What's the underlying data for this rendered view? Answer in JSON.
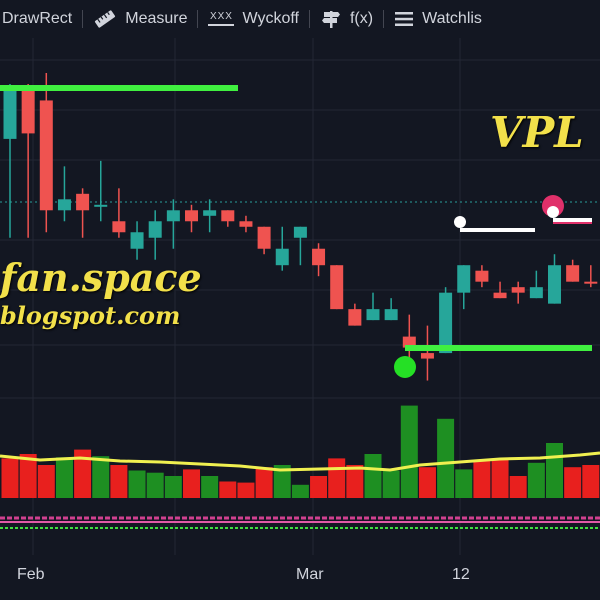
{
  "toolbar": {
    "items": [
      {
        "label": "DrawRect",
        "icon": "rectangle-icon"
      },
      {
        "label": "Measure",
        "icon": "ruler-icon"
      },
      {
        "label": "Wyckoff",
        "icon": "wyckoff-icon",
        "icon_text": "XXX"
      },
      {
        "label": "f(x)",
        "icon": "signpost-icon"
      },
      {
        "label": "Watchlis",
        "icon": "hamburger-menu-icon"
      }
    ]
  },
  "ticker": "VPL",
  "watermark": {
    "line1": "fan.space",
    "line2": "blogspot.com"
  },
  "x_axis": {
    "labels": [
      "Feb",
      "Mar",
      "12"
    ]
  },
  "colors": {
    "background": "#131722",
    "up": "#26a69a",
    "down": "#ef5350",
    "volume_up": "#1e8f22",
    "volume_down": "#e8201e",
    "support_line": "#40f040",
    "volume_ma": "#f0f050",
    "ticker_text": "#f2e04a",
    "marker_pink": "#e0306a"
  },
  "chart_data": {
    "type": "candlestick",
    "candles": [
      {
        "o": 70,
        "h": 71,
        "l": 43,
        "c": 61,
        "dir": "up"
      },
      {
        "o": 70,
        "h": 71,
        "l": 43,
        "c": 62,
        "dir": "down"
      },
      {
        "o": 68,
        "h": 73,
        "l": 44,
        "c": 48,
        "dir": "down"
      },
      {
        "o": 50,
        "h": 56,
        "l": 46,
        "c": 48,
        "dir": "up"
      },
      {
        "o": 51,
        "h": 52,
        "l": 43,
        "c": 48,
        "dir": "down"
      },
      {
        "o": 49,
        "h": 57,
        "l": 46,
        "c": 49,
        "dir": "up"
      },
      {
        "o": 46,
        "h": 52,
        "l": 43,
        "c": 44,
        "dir": "down"
      },
      {
        "o": 41,
        "h": 46,
        "l": 39,
        "c": 44,
        "dir": "up"
      },
      {
        "o": 43,
        "h": 48,
        "l": 39,
        "c": 46,
        "dir": "up"
      },
      {
        "o": 46,
        "h": 50,
        "l": 41,
        "c": 48,
        "dir": "up"
      },
      {
        "o": 48,
        "h": 49,
        "l": 44,
        "c": 46,
        "dir": "down"
      },
      {
        "o": 48,
        "h": 50,
        "l": 44,
        "c": 47,
        "dir": "up"
      },
      {
        "o": 48,
        "h": 48,
        "l": 45,
        "c": 46,
        "dir": "down"
      },
      {
        "o": 46,
        "h": 47,
        "l": 44,
        "c": 45,
        "dir": "down"
      },
      {
        "o": 45,
        "h": 45,
        "l": 40,
        "c": 41,
        "dir": "down"
      },
      {
        "o": 38,
        "h": 45,
        "l": 37,
        "c": 41,
        "dir": "up"
      },
      {
        "o": 43,
        "h": 45,
        "l": 38,
        "c": 45,
        "dir": "up"
      },
      {
        "o": 41,
        "h": 42,
        "l": 36,
        "c": 38,
        "dir": "down"
      },
      {
        "o": 38,
        "h": 38,
        "l": 30,
        "c": 30,
        "dir": "down"
      },
      {
        "o": 30,
        "h": 31,
        "l": 27,
        "c": 27,
        "dir": "down"
      },
      {
        "o": 28,
        "h": 33,
        "l": 28,
        "c": 30,
        "dir": "up"
      },
      {
        "o": 28,
        "h": 32,
        "l": 28,
        "c": 30,
        "dir": "up"
      },
      {
        "o": 25,
        "h": 29,
        "l": 21,
        "c": 23,
        "dir": "down"
      },
      {
        "o": 22,
        "h": 27,
        "l": 17,
        "c": 21,
        "dir": "down"
      },
      {
        "o": 22,
        "h": 34,
        "l": 22,
        "c": 33,
        "dir": "up"
      },
      {
        "o": 33,
        "h": 38,
        "l": 30,
        "c": 38,
        "dir": "up"
      },
      {
        "o": 37,
        "h": 38,
        "l": 34,
        "c": 35,
        "dir": "down"
      },
      {
        "o": 33,
        "h": 35,
        "l": 32,
        "c": 32,
        "dir": "down"
      },
      {
        "o": 33,
        "h": 35,
        "l": 31,
        "c": 34,
        "dir": "down"
      },
      {
        "o": 32,
        "h": 37,
        "l": 32,
        "c": 34,
        "dir": "up"
      },
      {
        "o": 31,
        "h": 40,
        "l": 31,
        "c": 38,
        "dir": "up"
      },
      {
        "o": 38,
        "h": 39,
        "l": 35,
        "c": 35,
        "dir": "down"
      },
      {
        "o": 35,
        "h": 38,
        "l": 34,
        "c": 35,
        "dir": "down"
      }
    ],
    "volume": [
      {
        "v": 36,
        "dir": "down"
      },
      {
        "v": 40,
        "dir": "down"
      },
      {
        "v": 30,
        "dir": "down"
      },
      {
        "v": 37,
        "dir": "up"
      },
      {
        "v": 44,
        "dir": "down"
      },
      {
        "v": 38,
        "dir": "up"
      },
      {
        "v": 30,
        "dir": "down"
      },
      {
        "v": 25,
        "dir": "up"
      },
      {
        "v": 23,
        "dir": "up"
      },
      {
        "v": 20,
        "dir": "up"
      },
      {
        "v": 26,
        "dir": "down"
      },
      {
        "v": 20,
        "dir": "up"
      },
      {
        "v": 15,
        "dir": "down"
      },
      {
        "v": 14,
        "dir": "down"
      },
      {
        "v": 28,
        "dir": "down"
      },
      {
        "v": 30,
        "dir": "up"
      },
      {
        "v": 12,
        "dir": "up"
      },
      {
        "v": 20,
        "dir": "down"
      },
      {
        "v": 36,
        "dir": "down"
      },
      {
        "v": 30,
        "dir": "down"
      },
      {
        "v": 40,
        "dir": "up"
      },
      {
        "v": 25,
        "dir": "up"
      },
      {
        "v": 84,
        "dir": "up"
      },
      {
        "v": 28,
        "dir": "down"
      },
      {
        "v": 72,
        "dir": "up"
      },
      {
        "v": 26,
        "dir": "up"
      },
      {
        "v": 34,
        "dir": "down"
      },
      {
        "v": 36,
        "dir": "down"
      },
      {
        "v": 20,
        "dir": "down"
      },
      {
        "v": 32,
        "dir": "up"
      },
      {
        "v": 50,
        "dir": "up"
      },
      {
        "v": 28,
        "dir": "down"
      },
      {
        "v": 30,
        "dir": "down"
      }
    ]
  }
}
